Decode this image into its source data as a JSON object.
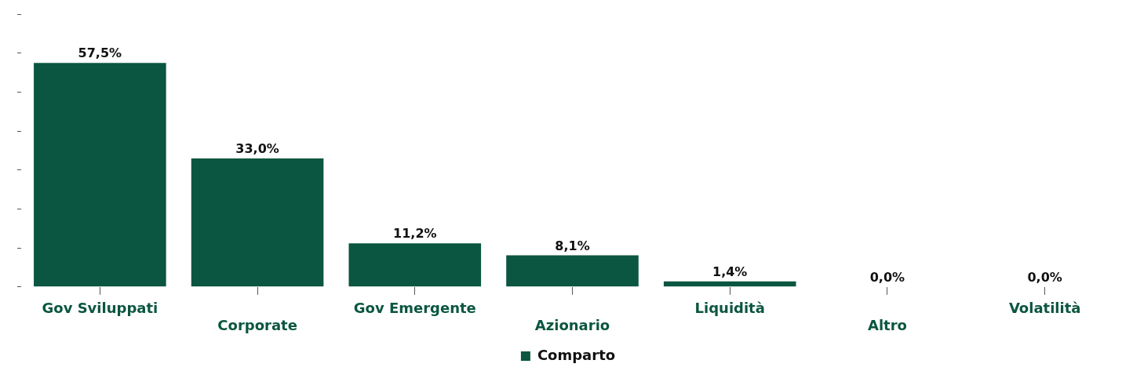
{
  "chart_data": {
    "type": "bar",
    "categories": [
      "Gov Sviluppati",
      "Corporate",
      "Gov Emergente",
      "Azionario",
      "Liquidità",
      "Altro",
      "Volatilità"
    ],
    "series": [
      {
        "name": "Comparto",
        "color": "#0b5640",
        "values": [
          57.5,
          33.0,
          11.2,
          8.1,
          1.4,
          0.0,
          0.0
        ],
        "value_labels": [
          "57,5%",
          "33,0%",
          "11,2%",
          "8,1%",
          "1,4%",
          "0,0%",
          "0,0%"
        ]
      }
    ],
    "yticks": [
      {
        "value": 0,
        "label": null
      },
      {
        "value": 10,
        "label": null
      },
      {
        "value": 20,
        "label": null
      },
      {
        "value": 30,
        "label": null
      },
      {
        "value": 40,
        "label": null
      },
      {
        "value": 50,
        "label": null
      },
      {
        "value": 60,
        "label": null
      },
      {
        "value": 70,
        "label": null
      }
    ],
    "grid": false,
    "legend": "bottom"
  }
}
